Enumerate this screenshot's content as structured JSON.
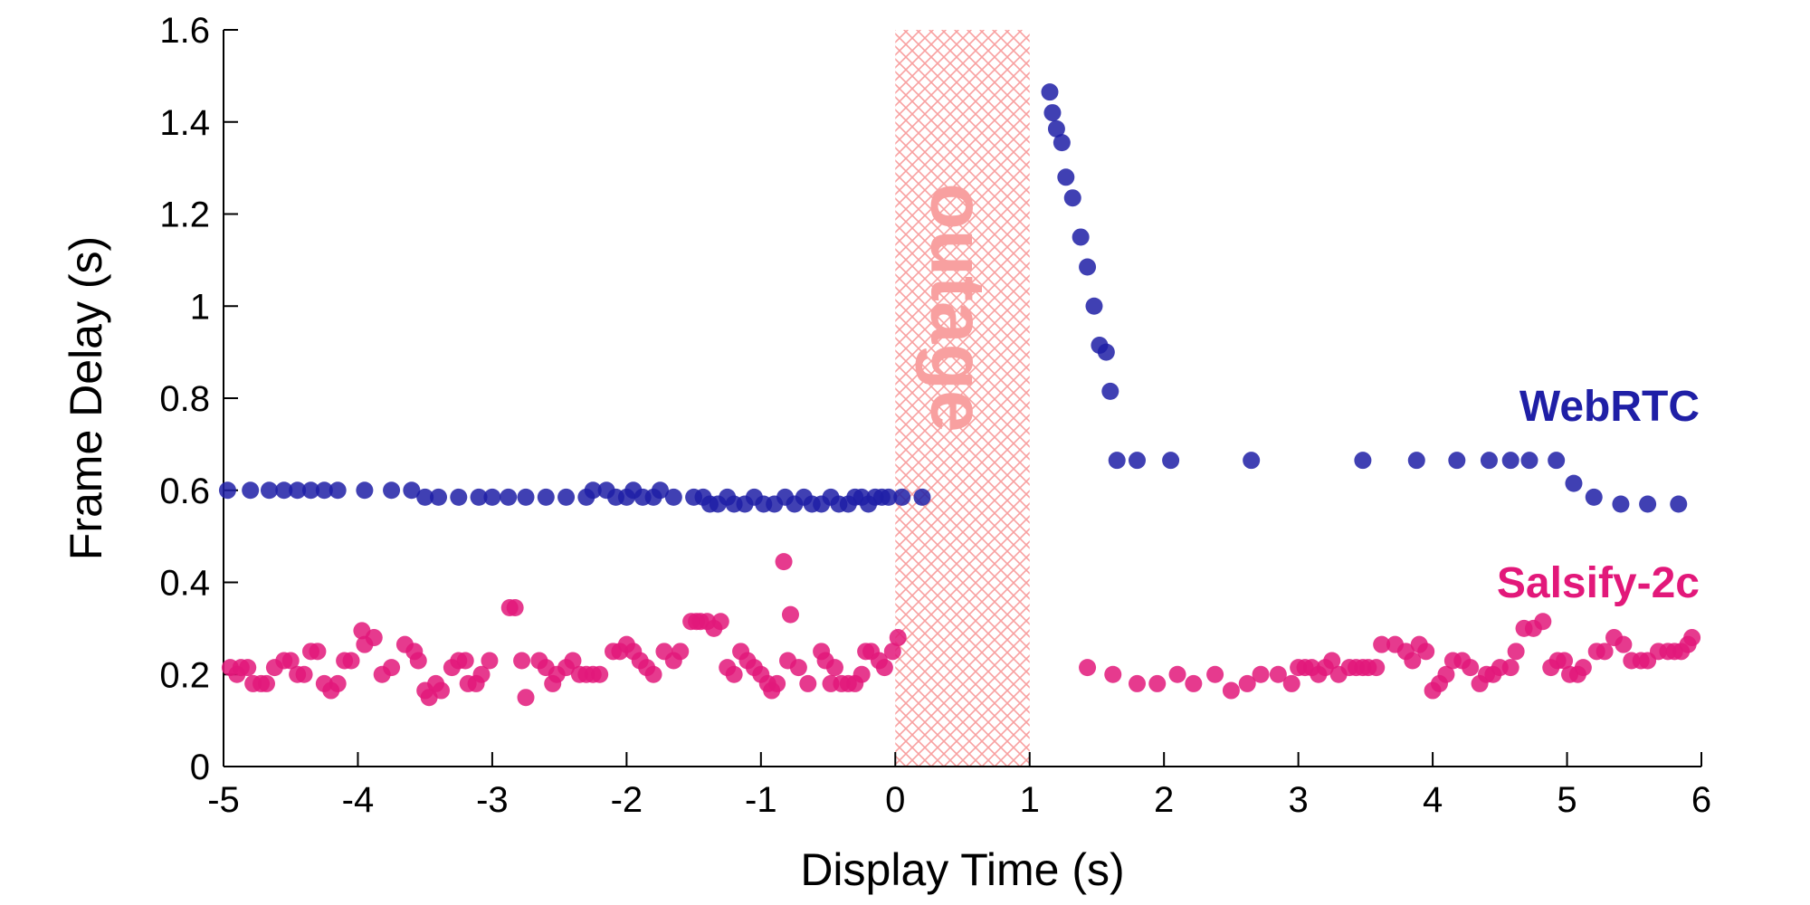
{
  "chart_data": {
    "type": "scatter",
    "xlabel": "Display Time (s)",
    "ylabel": "Frame Delay (s)",
    "xlim": [
      -5,
      6
    ],
    "ylim": [
      0,
      1.6
    ],
    "xticks": [
      "-5",
      "-4",
      "-3",
      "-2",
      "-1",
      "0",
      "1",
      "2",
      "3",
      "4",
      "5",
      "6"
    ],
    "yticks": [
      "0",
      "0.2",
      "0.4",
      "0.6",
      "0.8",
      "1",
      "1.2",
      "1.4",
      "1.6"
    ],
    "grid": false,
    "annotation": {
      "text": "outage",
      "x_range": [
        0,
        1
      ],
      "color": "#f8a0a0"
    },
    "series": [
      {
        "name": "WebRTC",
        "color": "#1f1fa6",
        "points": [
          [
            -4.97,
            0.6
          ],
          [
            -4.8,
            0.6
          ],
          [
            -4.66,
            0.6
          ],
          [
            -4.55,
            0.6
          ],
          [
            -4.45,
            0.6
          ],
          [
            -4.35,
            0.6
          ],
          [
            -4.25,
            0.6
          ],
          [
            -4.15,
            0.6
          ],
          [
            -3.95,
            0.6
          ],
          [
            -3.75,
            0.6
          ],
          [
            -3.6,
            0.6
          ],
          [
            -3.5,
            0.585
          ],
          [
            -3.4,
            0.585
          ],
          [
            -3.25,
            0.585
          ],
          [
            -3.1,
            0.585
          ],
          [
            -3.0,
            0.585
          ],
          [
            -2.88,
            0.585
          ],
          [
            -2.75,
            0.585
          ],
          [
            -2.6,
            0.585
          ],
          [
            -2.45,
            0.585
          ],
          [
            -2.3,
            0.585
          ],
          [
            -2.25,
            0.6
          ],
          [
            -2.15,
            0.6
          ],
          [
            -2.08,
            0.585
          ],
          [
            -2.0,
            0.585
          ],
          [
            -1.95,
            0.6
          ],
          [
            -1.88,
            0.585
          ],
          [
            -1.8,
            0.585
          ],
          [
            -1.75,
            0.6
          ],
          [
            -1.65,
            0.585
          ],
          [
            -1.5,
            0.585
          ],
          [
            -1.43,
            0.585
          ],
          [
            -1.38,
            0.57
          ],
          [
            -1.32,
            0.57
          ],
          [
            -1.25,
            0.585
          ],
          [
            -1.2,
            0.57
          ],
          [
            -1.12,
            0.57
          ],
          [
            -1.05,
            0.585
          ],
          [
            -0.98,
            0.57
          ],
          [
            -0.9,
            0.57
          ],
          [
            -0.82,
            0.585
          ],
          [
            -0.75,
            0.57
          ],
          [
            -0.68,
            0.585
          ],
          [
            -0.62,
            0.57
          ],
          [
            -0.55,
            0.57
          ],
          [
            -0.48,
            0.585
          ],
          [
            -0.42,
            0.57
          ],
          [
            -0.35,
            0.57
          ],
          [
            -0.3,
            0.585
          ],
          [
            -0.25,
            0.585
          ],
          [
            -0.2,
            0.57
          ],
          [
            -0.15,
            0.585
          ],
          [
            -0.1,
            0.585
          ],
          [
            -0.05,
            0.585
          ],
          [
            0.05,
            0.585
          ],
          [
            0.2,
            0.585
          ],
          [
            1.15,
            1.465
          ],
          [
            1.17,
            1.42
          ],
          [
            1.2,
            1.385
          ],
          [
            1.24,
            1.355
          ],
          [
            1.27,
            1.28
          ],
          [
            1.32,
            1.235
          ],
          [
            1.38,
            1.15
          ],
          [
            1.43,
            1.085
          ],
          [
            1.48,
            1.0
          ],
          [
            1.52,
            0.915
          ],
          [
            1.57,
            0.9
          ],
          [
            1.6,
            0.815
          ],
          [
            1.65,
            0.665
          ],
          [
            1.8,
            0.665
          ],
          [
            2.05,
            0.665
          ],
          [
            2.65,
            0.665
          ],
          [
            3.48,
            0.665
          ],
          [
            3.88,
            0.665
          ],
          [
            4.18,
            0.665
          ],
          [
            4.42,
            0.665
          ],
          [
            4.58,
            0.665
          ],
          [
            4.72,
            0.665
          ],
          [
            4.92,
            0.665
          ],
          [
            5.05,
            0.615
          ],
          [
            5.2,
            0.585
          ],
          [
            5.4,
            0.57
          ],
          [
            5.6,
            0.57
          ],
          [
            5.83,
            0.57
          ]
        ]
      },
      {
        "name": "Salsify-2c",
        "color": "#e2187a",
        "points": [
          [
            -4.95,
            0.215
          ],
          [
            -4.9,
            0.2
          ],
          [
            -4.87,
            0.215
          ],
          [
            -4.82,
            0.215
          ],
          [
            -4.78,
            0.18
          ],
          [
            -4.72,
            0.18
          ],
          [
            -4.68,
            0.18
          ],
          [
            -4.62,
            0.215
          ],
          [
            -4.55,
            0.23
          ],
          [
            -4.5,
            0.23
          ],
          [
            -4.45,
            0.2
          ],
          [
            -4.4,
            0.2
          ],
          [
            -4.35,
            0.25
          ],
          [
            -4.3,
            0.25
          ],
          [
            -4.25,
            0.18
          ],
          [
            -4.2,
            0.165
          ],
          [
            -4.15,
            0.18
          ],
          [
            -4.1,
            0.23
          ],
          [
            -4.05,
            0.23
          ],
          [
            -3.97,
            0.295
          ],
          [
            -3.95,
            0.265
          ],
          [
            -3.88,
            0.28
          ],
          [
            -3.82,
            0.2
          ],
          [
            -3.75,
            0.215
          ],
          [
            -3.65,
            0.265
          ],
          [
            -3.58,
            0.25
          ],
          [
            -3.55,
            0.23
          ],
          [
            -3.5,
            0.165
          ],
          [
            -3.47,
            0.15
          ],
          [
            -3.42,
            0.18
          ],
          [
            -3.38,
            0.165
          ],
          [
            -3.3,
            0.215
          ],
          [
            -3.25,
            0.23
          ],
          [
            -3.2,
            0.23
          ],
          [
            -3.18,
            0.18
          ],
          [
            -3.12,
            0.18
          ],
          [
            -3.08,
            0.2
          ],
          [
            -3.02,
            0.23
          ],
          [
            -2.87,
            0.345
          ],
          [
            -2.83,
            0.345
          ],
          [
            -2.78,
            0.23
          ],
          [
            -2.75,
            0.15
          ],
          [
            -2.65,
            0.23
          ],
          [
            -2.6,
            0.215
          ],
          [
            -2.55,
            0.18
          ],
          [
            -2.52,
            0.2
          ],
          [
            -2.45,
            0.215
          ],
          [
            -2.4,
            0.23
          ],
          [
            -2.35,
            0.2
          ],
          [
            -2.3,
            0.2
          ],
          [
            -2.25,
            0.2
          ],
          [
            -2.2,
            0.2
          ],
          [
            -2.1,
            0.25
          ],
          [
            -2.05,
            0.25
          ],
          [
            -2.0,
            0.265
          ],
          [
            -1.95,
            0.25
          ],
          [
            -1.9,
            0.23
          ],
          [
            -1.85,
            0.215
          ],
          [
            -1.8,
            0.2
          ],
          [
            -1.72,
            0.25
          ],
          [
            -1.65,
            0.23
          ],
          [
            -1.6,
            0.25
          ],
          [
            -1.52,
            0.315
          ],
          [
            -1.48,
            0.315
          ],
          [
            -1.45,
            0.315
          ],
          [
            -1.4,
            0.315
          ],
          [
            -1.35,
            0.3
          ],
          [
            -1.3,
            0.315
          ],
          [
            -1.25,
            0.215
          ],
          [
            -1.2,
            0.2
          ],
          [
            -1.15,
            0.25
          ],
          [
            -1.1,
            0.23
          ],
          [
            -1.05,
            0.215
          ],
          [
            -1.0,
            0.2
          ],
          [
            -0.95,
            0.18
          ],
          [
            -0.92,
            0.165
          ],
          [
            -0.88,
            0.18
          ],
          [
            -0.8,
            0.23
          ],
          [
            -0.83,
            0.445
          ],
          [
            -0.78,
            0.33
          ],
          [
            -0.72,
            0.215
          ],
          [
            -0.65,
            0.18
          ],
          [
            -0.55,
            0.25
          ],
          [
            -0.52,
            0.23
          ],
          [
            -0.48,
            0.18
          ],
          [
            -0.45,
            0.215
          ],
          [
            -0.4,
            0.18
          ],
          [
            -0.35,
            0.18
          ],
          [
            -0.3,
            0.18
          ],
          [
            -0.25,
            0.2
          ],
          [
            -0.22,
            0.25
          ],
          [
            -0.18,
            0.25
          ],
          [
            -0.12,
            0.23
          ],
          [
            -0.08,
            0.215
          ],
          [
            -0.02,
            0.25
          ],
          [
            0.02,
            0.28
          ],
          [
            1.43,
            0.215
          ],
          [
            1.62,
            0.2
          ],
          [
            1.8,
            0.18
          ],
          [
            1.95,
            0.18
          ],
          [
            2.1,
            0.2
          ],
          [
            2.22,
            0.18
          ],
          [
            2.38,
            0.2
          ],
          [
            2.5,
            0.165
          ],
          [
            2.62,
            0.18
          ],
          [
            2.72,
            0.2
          ],
          [
            2.85,
            0.2
          ],
          [
            2.95,
            0.18
          ],
          [
            3.0,
            0.215
          ],
          [
            3.05,
            0.215
          ],
          [
            3.1,
            0.215
          ],
          [
            3.15,
            0.2
          ],
          [
            3.2,
            0.215
          ],
          [
            3.25,
            0.23
          ],
          [
            3.3,
            0.2
          ],
          [
            3.38,
            0.215
          ],
          [
            3.43,
            0.215
          ],
          [
            3.48,
            0.215
          ],
          [
            3.52,
            0.215
          ],
          [
            3.58,
            0.215
          ],
          [
            3.62,
            0.265
          ],
          [
            3.72,
            0.265
          ],
          [
            3.8,
            0.25
          ],
          [
            3.85,
            0.23
          ],
          [
            3.9,
            0.265
          ],
          [
            3.95,
            0.25
          ],
          [
            4.0,
            0.165
          ],
          [
            4.05,
            0.18
          ],
          [
            4.1,
            0.2
          ],
          [
            4.15,
            0.23
          ],
          [
            4.22,
            0.23
          ],
          [
            4.28,
            0.215
          ],
          [
            4.35,
            0.18
          ],
          [
            4.4,
            0.2
          ],
          [
            4.45,
            0.2
          ],
          [
            4.5,
            0.215
          ],
          [
            4.58,
            0.215
          ],
          [
            4.62,
            0.25
          ],
          [
            4.68,
            0.3
          ],
          [
            4.75,
            0.3
          ],
          [
            4.82,
            0.315
          ],
          [
            4.88,
            0.215
          ],
          [
            4.93,
            0.23
          ],
          [
            4.98,
            0.23
          ],
          [
            5.02,
            0.2
          ],
          [
            5.08,
            0.2
          ],
          [
            5.12,
            0.215
          ],
          [
            5.22,
            0.25
          ],
          [
            5.28,
            0.25
          ],
          [
            5.35,
            0.28
          ],
          [
            5.42,
            0.265
          ],
          [
            5.48,
            0.23
          ],
          [
            5.55,
            0.23
          ],
          [
            5.6,
            0.23
          ],
          [
            5.68,
            0.25
          ],
          [
            5.75,
            0.25
          ],
          [
            5.8,
            0.25
          ],
          [
            5.85,
            0.25
          ],
          [
            5.9,
            0.265
          ],
          [
            5.93,
            0.28
          ]
        ]
      }
    ]
  }
}
